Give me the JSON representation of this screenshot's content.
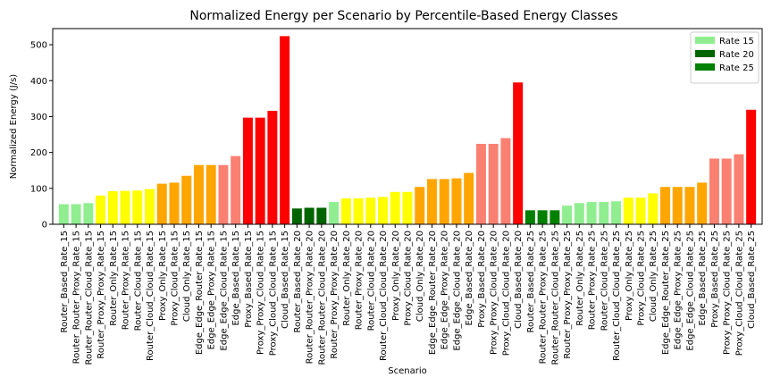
{
  "chart_data": {
    "type": "bar",
    "title": "Normalized Energy per Scenario by Percentile-Based Energy Classes",
    "xlabel": "Scenario",
    "ylabel": "Normalized Energy (J/s)",
    "ylim": [
      0,
      545
    ],
    "yticks": [
      0,
      100,
      200,
      300,
      400,
      500
    ],
    "legend": {
      "placement": "top-right",
      "entries": [
        {
          "label": "Rate 15",
          "color": "#90ee90"
        },
        {
          "label": "Rate 20",
          "color": "#006400"
        },
        {
          "label": "Rate 25",
          "color": "#008000"
        }
      ]
    },
    "categories": [
      "Router_Based_Rate_15",
      "Router_Router_Proxy_Rate_15",
      "Router_Router_Cloud_Rate_15",
      "Router_Proxy_Proxy_Rate_15",
      "Router_Only_Rate_15",
      "Router_Proxy_Rate_15",
      "Router_Cloud_Rate_15",
      "Router_Cloud_Cloud_Rate_15",
      "Proxy_Only_Rate_15",
      "Proxy_Cloud_Rate_15",
      "Cloud_Only_Rate_15",
      "Edge_Edge_Router_Rate_15",
      "Edge_Edge_Proxy_Rate_15",
      "Edge_Edge_Cloud_Rate_15",
      "Edge_Based_Rate_15",
      "Proxy_Based_Rate_15",
      "Proxy_Proxy_Cloud_Rate_15",
      "Proxy_Cloud_Cloud_Rate_15",
      "Cloud_Based_Rate_15",
      "Router_Based_Rate_20",
      "Router_Router_Proxy_Rate_20",
      "Router_Router_Cloud_Rate_20",
      "Router_Proxy_Proxy_Rate_20",
      "Router_Only_Rate_20",
      "Router_Proxy_Rate_20",
      "Router_Cloud_Rate_20",
      "Router_Cloud_Cloud_Rate_20",
      "Proxy_Only_Rate_20",
      "Proxy_Cloud_Rate_20",
      "Cloud_Only_Rate_20",
      "Edge_Edge_Router_Rate_20",
      "Edge_Edge_Proxy_Rate_20",
      "Edge_Edge_Cloud_Rate_20",
      "Edge_Based_Rate_20",
      "Proxy_Based_Rate_20",
      "Proxy_Proxy_Cloud_Rate_20",
      "Proxy_Cloud_Cloud_Rate_20",
      "Cloud_Based_Rate_20",
      "Router_Based_Rate_25",
      "Router_Router_Proxy_Rate_25",
      "Router_Router_Cloud_Rate_25",
      "Router_Proxy_Proxy_Rate_25",
      "Router_Only_Rate_25",
      "Router_Proxy_Rate_25",
      "Router_Cloud_Rate_25",
      "Router_Cloud_Cloud_Rate_25",
      "Proxy_Only_Rate_25",
      "Proxy_Cloud_Rate_25",
      "Cloud_Only_Rate_25",
      "Edge_Edge_Router_Rate_25",
      "Edge_Edge_Proxy_Rate_25",
      "Edge_Edge_Cloud_Rate_25",
      "Edge_Based_Rate_25",
      "Proxy_Based_Rate_25",
      "Proxy_Proxy_Cloud_Rate_25",
      "Proxy_Cloud_Cloud_Rate_25",
      "Cloud_Based_Rate_25"
    ],
    "values": [
      56,
      56,
      59,
      80,
      92,
      93,
      94,
      98,
      113,
      116,
      135,
      165,
      165,
      165,
      190,
      297,
      297,
      316,
      524,
      44,
      46,
      46,
      62,
      72,
      72,
      74,
      76,
      90,
      90,
      104,
      126,
      126,
      128,
      143,
      224,
      224,
      240,
      395,
      39,
      39,
      39,
      52,
      59,
      62,
      62,
      64,
      74,
      74,
      86,
      104,
      104,
      104,
      116,
      183,
      183,
      195,
      319
    ],
    "bar_colors": [
      "#90ee90",
      "#90ee90",
      "#90ee90",
      "#ffff00",
      "#ffff00",
      "#ffff00",
      "#ffff00",
      "#ffff00",
      "#ffa500",
      "#ffa500",
      "#ffa500",
      "#ffa500",
      "#ffa500",
      "#fa8072",
      "#fa8072",
      "#ff0000",
      "#ff0000",
      "#ff0000",
      "#ff0000",
      "#006400",
      "#006400",
      "#006400",
      "#90ee90",
      "#ffff00",
      "#ffff00",
      "#ffff00",
      "#ffff00",
      "#ffff00",
      "#ffff00",
      "#ffa500",
      "#ffa500",
      "#ffa500",
      "#ffa500",
      "#ffa500",
      "#fa8072",
      "#fa8072",
      "#fa8072",
      "#ff0000",
      "#008000",
      "#008000",
      "#008000",
      "#90ee90",
      "#90ee90",
      "#90ee90",
      "#90ee90",
      "#90ee90",
      "#ffff00",
      "#ffff00",
      "#ffff00",
      "#ffa500",
      "#ffa500",
      "#ffa500",
      "#ffa500",
      "#fa8072",
      "#fa8072",
      "#fa8072",
      "#ff0000"
    ]
  }
}
